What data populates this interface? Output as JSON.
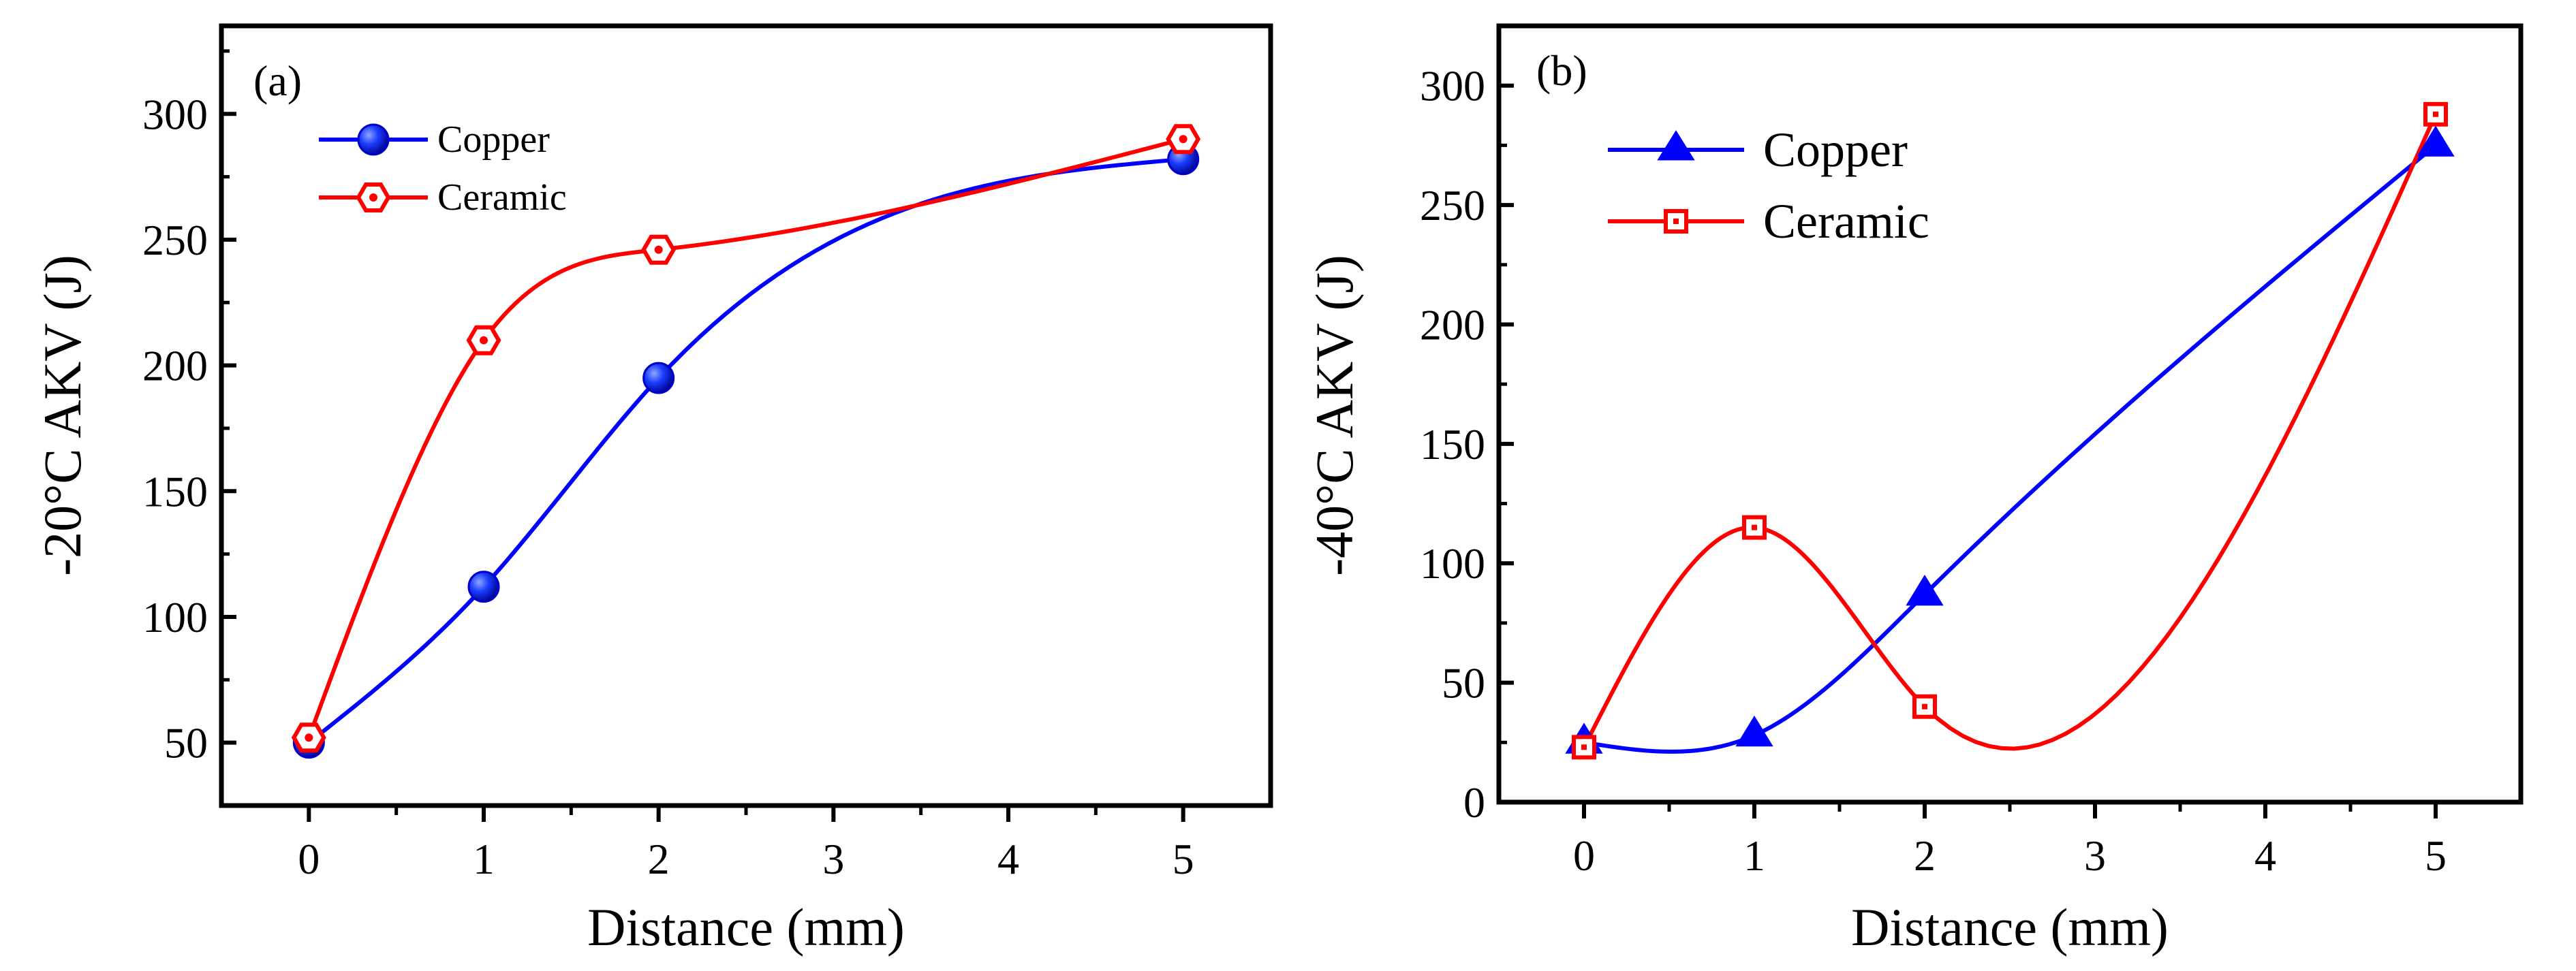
{
  "chart_data": [
    {
      "type": "line",
      "panel_label": "(a)",
      "title": "",
      "xlabel": "Distance (mm)",
      "ylabel": "-20°C AKV (J)",
      "xlim": [
        -0.5,
        5.5
      ],
      "ylim": [
        25,
        335
      ],
      "xticks": [
        0,
        1,
        2,
        3,
        4,
        5
      ],
      "yticks": [
        50,
        100,
        150,
        200,
        250,
        300
      ],
      "grid": false,
      "legend_position": "top-left",
      "series": [
        {
          "name": "Copper",
          "color": "#0000ff",
          "marker": "sphere",
          "x": [
            0,
            1,
            2,
            5
          ],
          "values": [
            50,
            112,
            195,
            282
          ]
        },
        {
          "name": "Ceramic",
          "color": "#ff0000",
          "marker": "hexagon",
          "x": [
            0,
            1,
            2,
            5
          ],
          "values": [
            52,
            210,
            246,
            290
          ]
        }
      ]
    },
    {
      "type": "line",
      "panel_label": "(b)",
      "title": "",
      "xlabel": "Distance (mm)",
      "ylabel": "-40°C AKV (J)",
      "xlim": [
        -0.5,
        5.5
      ],
      "ylim": [
        0,
        325
      ],
      "xticks": [
        0,
        1,
        2,
        3,
        4,
        5
      ],
      "yticks": [
        0,
        50,
        100,
        150,
        200,
        250,
        300
      ],
      "grid": false,
      "legend_position": "top-left",
      "series": [
        {
          "name": "Copper",
          "color": "#0000ff",
          "marker": "triangle",
          "x": [
            0,
            1,
            2,
            5
          ],
          "values": [
            25,
            28,
            87,
            275
          ]
        },
        {
          "name": "Ceramic",
          "color": "#ff0000",
          "marker": "square",
          "x": [
            0,
            1,
            2,
            5
          ],
          "values": [
            23,
            115,
            40,
            288
          ]
        }
      ]
    }
  ]
}
